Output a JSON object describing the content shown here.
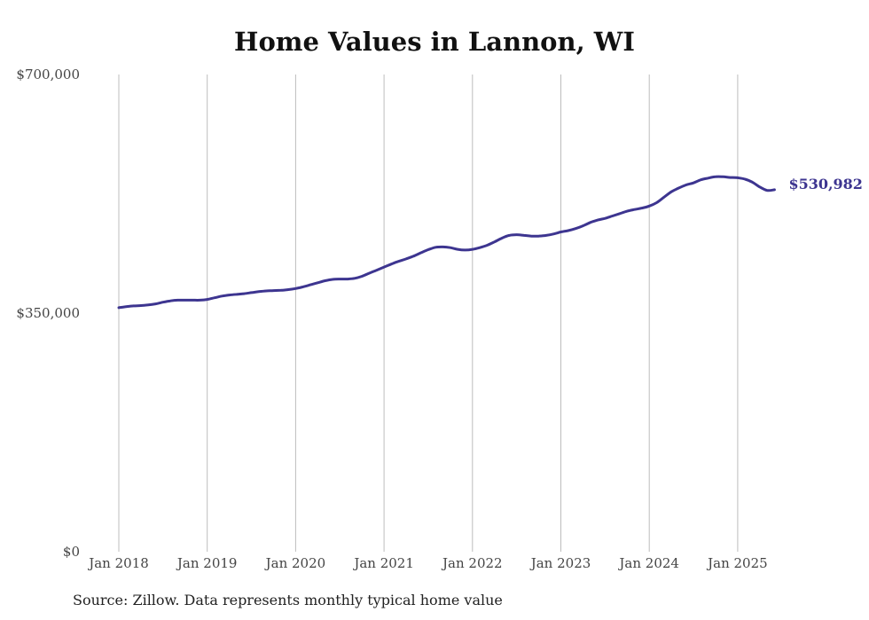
{
  "chart_data": {
    "type": "line",
    "title": "Home Values in Lannon, WI",
    "source": "Source: Zillow. Data represents monthly typical home value",
    "xlabel": "",
    "ylabel": "",
    "x_tick_labels": [
      "Jan 2018",
      "Jan 2019",
      "Jan 2020",
      "Jan 2021",
      "Jan 2022",
      "Jan 2023",
      "Jan 2024",
      "Jan 2025"
    ],
    "y_tick_labels": [
      "$0",
      "$350,000",
      "$700,000"
    ],
    "ylim": [
      0,
      700000
    ],
    "xlim": [
      "2018-01",
      "2025-06"
    ],
    "grid": "vertical",
    "line_color": "#3d3590",
    "end_label": "$530,982",
    "series": [
      {
        "x": [
          "2018-01",
          "2018-02",
          "2018-03",
          "2018-04",
          "2018-05",
          "2018-06",
          "2018-07",
          "2018-08",
          "2018-09",
          "2018-10",
          "2018-11",
          "2018-12",
          "2019-01",
          "2019-02",
          "2019-03",
          "2019-04",
          "2019-05",
          "2019-06",
          "2019-07",
          "2019-08",
          "2019-09",
          "2019-10",
          "2019-11",
          "2019-12",
          "2020-01",
          "2020-02",
          "2020-03",
          "2020-04",
          "2020-05",
          "2020-06",
          "2020-07",
          "2020-08",
          "2020-09",
          "2020-10",
          "2020-11",
          "2020-12",
          "2021-01",
          "2021-02",
          "2021-03",
          "2021-04",
          "2021-05",
          "2021-06",
          "2021-07",
          "2021-08",
          "2021-09",
          "2021-10",
          "2021-11",
          "2021-12",
          "2022-01",
          "2022-02",
          "2022-03",
          "2022-04",
          "2022-05",
          "2022-06",
          "2022-07",
          "2022-08",
          "2022-09",
          "2022-10",
          "2022-11",
          "2022-12",
          "2023-01",
          "2023-02",
          "2023-03",
          "2023-04",
          "2023-05",
          "2023-06",
          "2023-07",
          "2023-08",
          "2023-09",
          "2023-10",
          "2023-11",
          "2023-12",
          "2024-01",
          "2024-02",
          "2024-03",
          "2024-04",
          "2024-05",
          "2024-06",
          "2024-07",
          "2024-08",
          "2024-09",
          "2024-10",
          "2024-11",
          "2024-12",
          "2025-01",
          "2025-02",
          "2025-03",
          "2025-04",
          "2025-05",
          "2025-06"
        ],
        "values": [
          358000,
          359500,
          360500,
          361000,
          362000,
          363500,
          366000,
          368000,
          369000,
          369000,
          369000,
          369000,
          370000,
          372500,
          375000,
          376500,
          377500,
          378500,
          380000,
          381500,
          382500,
          383000,
          383500,
          384500,
          386000,
          388500,
          391500,
          394500,
          397500,
          399500,
          400000,
          400000,
          401000,
          404000,
          408500,
          413000,
          417500,
          422000,
          426000,
          429500,
          433500,
          438500,
          443000,
          446500,
          447000,
          446000,
          443500,
          442500,
          443500,
          446000,
          449500,
          454500,
          460000,
          464000,
          465000,
          464000,
          463000,
          463000,
          464000,
          466000,
          469000,
          471000,
          474000,
          478000,
          483000,
          486500,
          489000,
          492500,
          496000,
          499500,
          502000,
          504000,
          507000,
          512000,
          520000,
          528000,
          533500,
          538000,
          541000,
          545500,
          548000,
          550000,
          550000,
          549000,
          548500,
          546500,
          542000,
          535000,
          530000,
          530982
        ]
      }
    ]
  }
}
